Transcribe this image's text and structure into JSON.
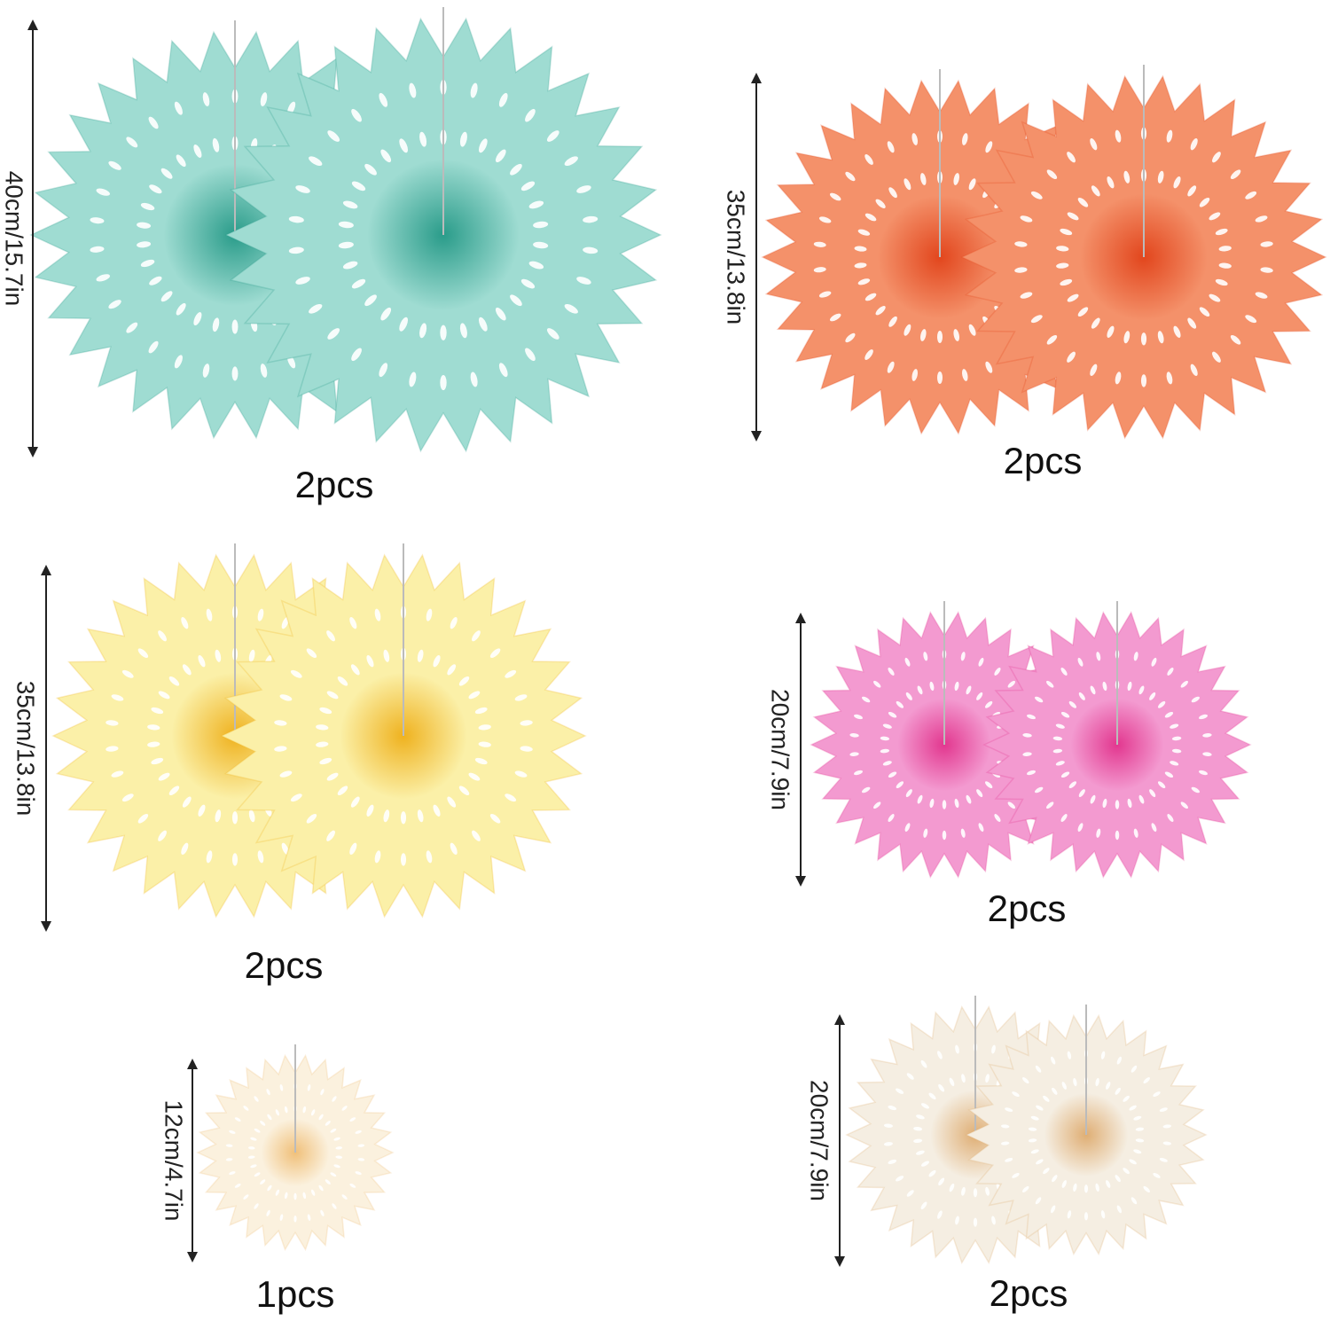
{
  "groups": [
    {
      "size": "40cm/15.7in",
      "count": "2pcs"
    },
    {
      "size": "35cm/13.8in",
      "count": "2pcs"
    },
    {
      "size": "35cm/13.8in",
      "count": "2pcs"
    },
    {
      "size": "20cm/7.9in",
      "count": "2pcs"
    },
    {
      "size": "12cm/4.7in",
      "count": "1pcs"
    },
    {
      "size": "20cm/7.9in",
      "count": "2pcs"
    }
  ]
}
